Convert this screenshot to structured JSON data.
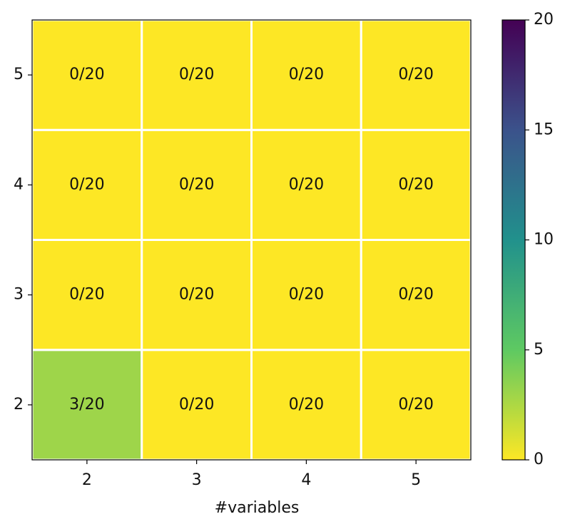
{
  "chart_data": {
    "type": "heatmap",
    "x_label": "#variables",
    "x": [
      "2",
      "3",
      "4",
      "5"
    ],
    "y": [
      "2",
      "3",
      "4",
      "5"
    ],
    "values": [
      [
        3,
        0,
        0,
        0
      ],
      [
        0,
        0,
        0,
        0
      ],
      [
        0,
        0,
        0,
        0
      ],
      [
        0,
        0,
        0,
        0
      ]
    ],
    "value_labels": [
      [
        "3/20",
        "0/20",
        "0/20",
        "0/20"
      ],
      [
        "0/20",
        "0/20",
        "0/20",
        "0/20"
      ],
      [
        "0/20",
        "0/20",
        "0/20",
        "0/20"
      ],
      [
        "0/20",
        "0/20",
        "0/20",
        "0/20"
      ]
    ],
    "colormap": "viridis_r",
    "clim": [
      0,
      20
    ],
    "cticks": [
      0,
      5,
      10,
      15,
      20
    ]
  }
}
